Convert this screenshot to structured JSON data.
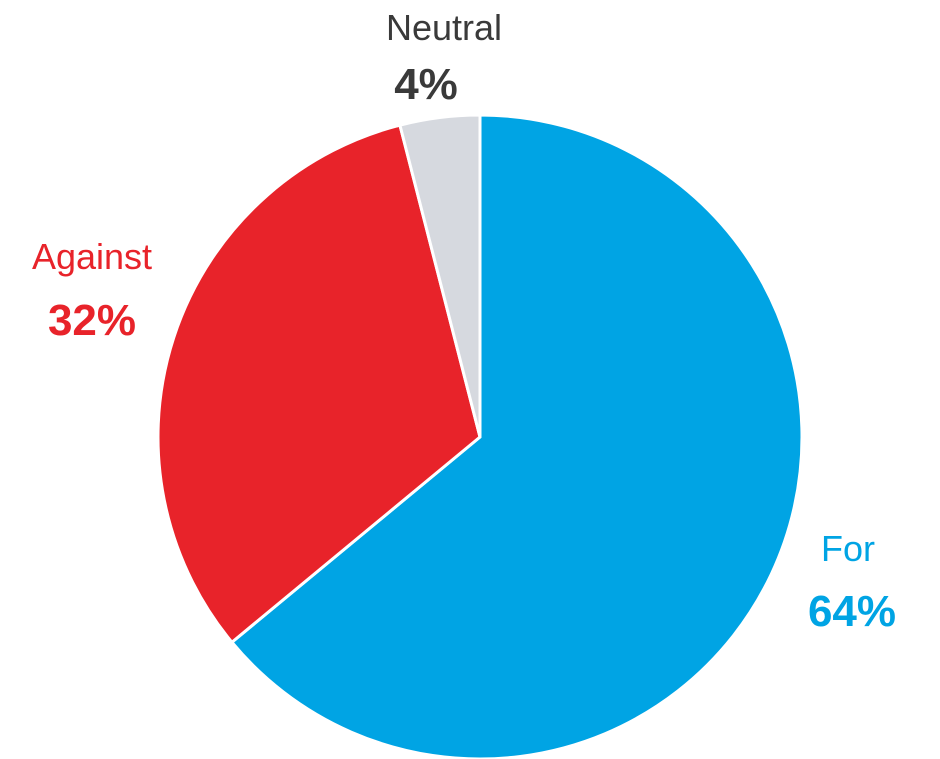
{
  "chart_data": {
    "type": "pie",
    "title": "",
    "start_angle": "12 o'clock",
    "direction": "clockwise",
    "slices": [
      {
        "label": "For",
        "value": 64,
        "value_label": "64%",
        "color": "#00A4E4",
        "label_color": "#00A4E4",
        "value_color": "#00A4E4"
      },
      {
        "label": "Against",
        "value": 32,
        "value_label": "32%",
        "color": "#E8232A",
        "label_color": "#E8232A",
        "value_color": "#E8232A"
      },
      {
        "label": "Neutral",
        "value": 4,
        "value_label": "4%",
        "color": "#D6D9DF",
        "label_color": "#3A3A3A",
        "value_color": "#3A3A3A"
      }
    ]
  }
}
